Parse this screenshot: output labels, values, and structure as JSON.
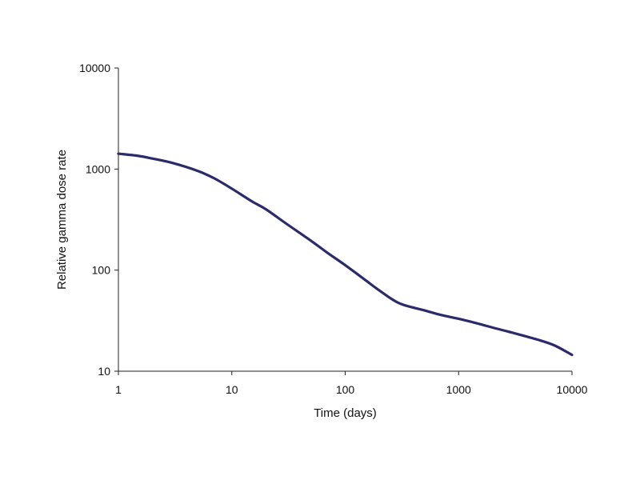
{
  "chart_data": {
    "type": "line",
    "title": "",
    "xlabel": "Time (days)",
    "ylabel": "Relative gamma dose rate",
    "x_scale": "log",
    "y_scale": "log",
    "xlim": [
      1,
      10000
    ],
    "ylim": [
      10,
      10000
    ],
    "x_ticks": [
      1,
      10,
      100,
      1000,
      10000
    ],
    "x_tick_labels": [
      "1",
      "10",
      "100",
      "1000",
      "10000"
    ],
    "y_ticks": [
      10,
      100,
      1000,
      10000
    ],
    "y_tick_labels": [
      "10",
      "100",
      "1000",
      "10000"
    ],
    "grid": false,
    "legend": "none",
    "line_color": "#2b2a6b",
    "series": [
      {
        "x": [
          1,
          1.5,
          2,
          3,
          5,
          7,
          10,
          15,
          20,
          30,
          50,
          70,
          100,
          150,
          200,
          300,
          500,
          700,
          1000,
          1500,
          2000,
          3000,
          5000,
          7000,
          10000
        ],
        "y": [
          1420,
          1350,
          1270,
          1150,
          960,
          810,
          640,
          480,
          400,
          290,
          195,
          148,
          112,
          80,
          63,
          47,
          40,
          36,
          33,
          29.5,
          27,
          24,
          20.5,
          18,
          14.5
        ]
      }
    ]
  }
}
